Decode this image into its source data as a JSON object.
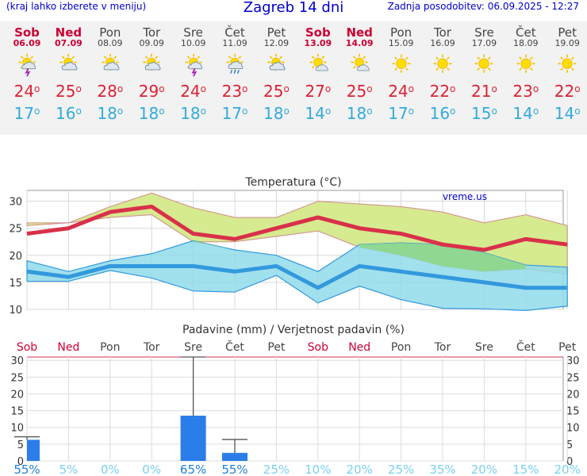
{
  "header": {
    "menu_hint": "(kraj lahko izberete v meniju)",
    "title": "Zagreb 14 dni",
    "updated": "Zadnja posodobitev: 06.09.2025 - 12:27"
  },
  "forecast": [
    {
      "day": "Sob",
      "date": "06.09",
      "icon": "sun-cloud-lightning-icon",
      "max": "24",
      "min": "17",
      "weekend": true
    },
    {
      "day": "Ned",
      "date": "07.09",
      "icon": "sun-cloud-icon",
      "max": "25",
      "min": "16",
      "weekend": true
    },
    {
      "day": "Pon",
      "date": "08.09",
      "icon": "sun-cloud-icon",
      "max": "28",
      "min": "18",
      "weekend": false
    },
    {
      "day": "Tor",
      "date": "09.09",
      "icon": "sun-cloud-icon",
      "max": "29",
      "min": "18",
      "weekend": false
    },
    {
      "day": "Sre",
      "date": "10.09",
      "icon": "sun-cloud-lightning-icon",
      "max": "24",
      "min": "18",
      "weekend": false
    },
    {
      "day": "Čet",
      "date": "11.09",
      "icon": "sun-cloud-rain-icon",
      "max": "23",
      "min": "17",
      "weekend": false
    },
    {
      "day": "Pet",
      "date": "12.09",
      "icon": "sun-cloud-icon",
      "max": "25",
      "min": "18",
      "weekend": false
    },
    {
      "day": "Sob",
      "date": "13.09",
      "icon": "sun-small-cloud-icon",
      "max": "27",
      "min": "14",
      "weekend": true
    },
    {
      "day": "Ned",
      "date": "14.09",
      "icon": "sun-small-cloud-icon",
      "max": "25",
      "min": "18",
      "weekend": true
    },
    {
      "day": "Pon",
      "date": "15.09",
      "icon": "sun-icon",
      "max": "24",
      "min": "17",
      "weekend": false
    },
    {
      "day": "Tor",
      "date": "16.09",
      "icon": "sun-icon",
      "max": "22",
      "min": "16",
      "weekend": false
    },
    {
      "day": "Sre",
      "date": "17.09",
      "icon": "sun-icon",
      "max": "21",
      "min": "15",
      "weekend": false
    },
    {
      "day": "Čet",
      "date": "18.09",
      "icon": "sun-icon",
      "max": "23",
      "min": "14",
      "weekend": false
    },
    {
      "day": "Pet",
      "date": "19.09",
      "icon": "sun-icon",
      "max": "22",
      "min": "14",
      "weekend": false
    }
  ],
  "colors": {
    "max": "#dd2233",
    "min": "#33aadd",
    "weekend": "#cc0033",
    "precip": "#2b7de9",
    "band_max": "#d6ea8f",
    "band_min": "#90dbea",
    "band_overlap": "#8fd68a"
  },
  "chart_data": [
    {
      "type": "line",
      "title": "Temperatura (°C)",
      "annotation": "vreme.us",
      "categories": [
        "Sob",
        "Ned",
        "Pon",
        "Tor",
        "Sre",
        "Čet",
        "Pet",
        "Sob",
        "Ned",
        "Pon",
        "Tor",
        "Sre",
        "Čet",
        "Pet"
      ],
      "ylim": [
        10,
        32
      ],
      "yticks": [
        10,
        15,
        20,
        25,
        30
      ],
      "grid": true,
      "series": [
        {
          "values": [
            24,
            25,
            28,
            29,
            24,
            23,
            25,
            27,
            25,
            24,
            22,
            21,
            23,
            22
          ],
          "band_low": [
            25.5,
            26,
            27,
            27.5,
            22.5,
            22.5,
            23.5,
            24.5,
            21.5,
            20,
            18,
            17,
            17.5,
            16.5
          ],
          "band_high": [
            26,
            26,
            29,
            31.5,
            28.8,
            27,
            27,
            30,
            29.5,
            29,
            28,
            26,
            27.5,
            25.5
          ]
        },
        {
          "values": [
            17,
            16,
            18,
            18,
            18,
            17,
            18,
            14,
            18,
            17,
            16,
            15,
            14,
            14
          ],
          "band_low": [
            15.2,
            15.2,
            17.2,
            15.8,
            13.4,
            13.2,
            16.3,
            11.2,
            14.3,
            11.8,
            10.2,
            10.1,
            9.8,
            10.6
          ],
          "band_high": [
            19,
            17,
            19,
            20.3,
            22.7,
            21,
            20,
            17,
            22,
            22.3,
            22,
            20.5,
            18.2,
            17.8
          ]
        }
      ]
    },
    {
      "type": "bar",
      "title": "Padavine (mm) / Verjetnost padavin (%)",
      "categories": [
        "Sob",
        "Ned",
        "Pon",
        "Tor",
        "Sre",
        "Čet",
        "Pet",
        "Sob",
        "Ned",
        "Pon",
        "Tor",
        "Sre",
        "Čet",
        "Pet"
      ],
      "values": [
        6.3,
        0,
        0,
        0,
        13.5,
        2.4,
        0,
        0,
        0,
        0,
        0,
        0,
        0,
        0
      ],
      "error_high": [
        7.2,
        0,
        0,
        0,
        31,
        6.4,
        0,
        0,
        0,
        0,
        0,
        0,
        0,
        0
      ],
      "probability": [
        "55%",
        "5%",
        "0%",
        "0%",
        "65%",
        "55%",
        "25%",
        "10%",
        "20%",
        "25%",
        "35%",
        "20%",
        "15%",
        "20%"
      ],
      "ylim": [
        0,
        31
      ],
      "yticks": [
        0,
        5,
        10,
        15,
        20,
        25,
        30
      ],
      "grid": true
    }
  ]
}
